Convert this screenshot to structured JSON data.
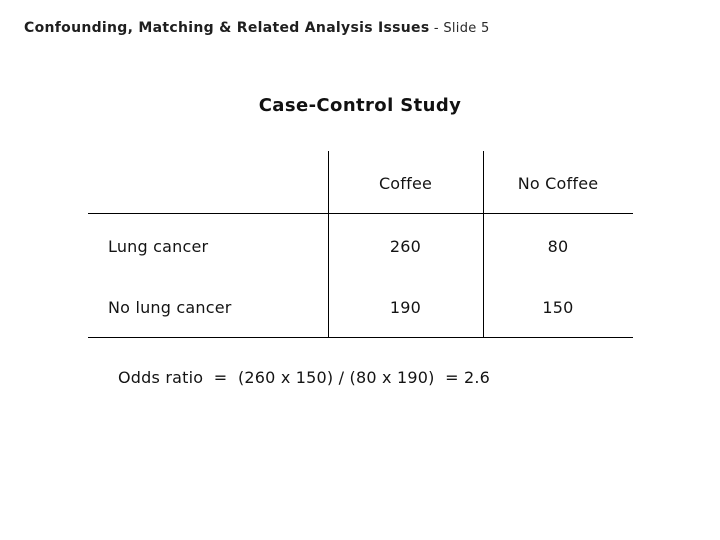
{
  "slide": {
    "header_title": "Confounding, Matching & Related Analysis Issues",
    "header_suffix": " - Slide 5",
    "title": "Case-Control Study",
    "table": {
      "col_headers": [
        "Coffee",
        "No Coffee"
      ],
      "rows": [
        {
          "label": "Lung cancer",
          "values": [
            "260",
            "80"
          ]
        },
        {
          "label": "No lung cancer",
          "values": [
            "190",
            "150"
          ]
        }
      ]
    },
    "odds_ratio_text": "Odds ratio  =  (260 x 150) / (80 x 190)  = 2.6",
    "colors": {
      "background": "#ffffff",
      "text": "#141414",
      "line": "#000000"
    }
  }
}
